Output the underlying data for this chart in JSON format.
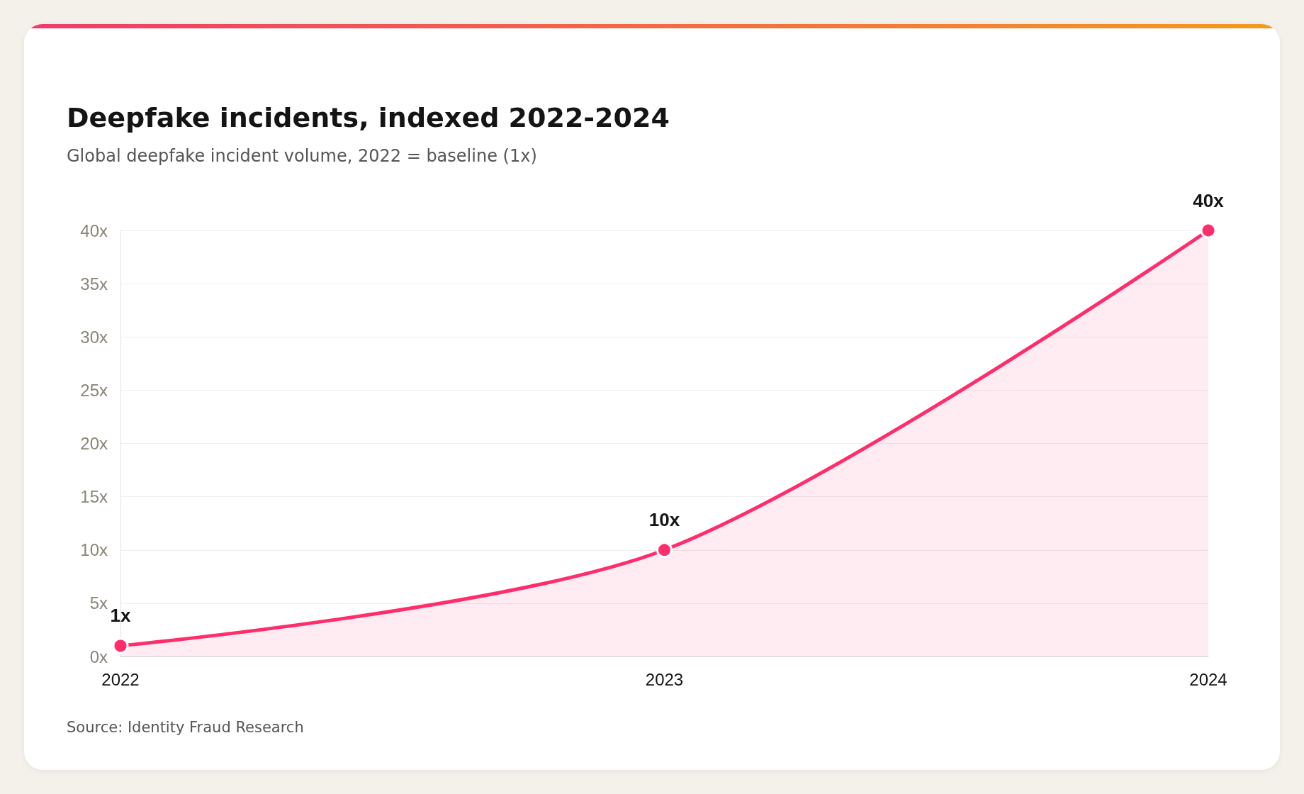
{
  "chart_data": {
    "type": "area",
    "title": "Deepfake incidents, indexed 2022-2024",
    "subtitle": "Global deepfake incident volume, 2022 = baseline (1x)",
    "annotations": [
      "Source: Identity Fraud Research"
    ],
    "categories": [
      "2022",
      "2023",
      "2024"
    ],
    "series": [
      {
        "color": "#ff2d6b",
        "values": [
          1,
          10,
          40
        ],
        "value_labels": [
          "1x",
          "10x",
          "40x"
        ]
      }
    ],
    "ylim": [
      0,
      40
    ],
    "yticks": [
      {
        "value": 0,
        "label": "0x"
      },
      {
        "value": 5,
        "label": "5x"
      },
      {
        "value": 10,
        "label": "10x"
      },
      {
        "value": 15,
        "label": "15x"
      },
      {
        "value": 20,
        "label": "20x"
      },
      {
        "value": 25,
        "label": "25x"
      },
      {
        "value": 30,
        "label": "30x"
      },
      {
        "value": 35,
        "label": "35x"
      },
      {
        "value": 40,
        "label": "40x"
      }
    ],
    "grid": "y",
    "marker": "circle",
    "line_style": "solid"
  }
}
